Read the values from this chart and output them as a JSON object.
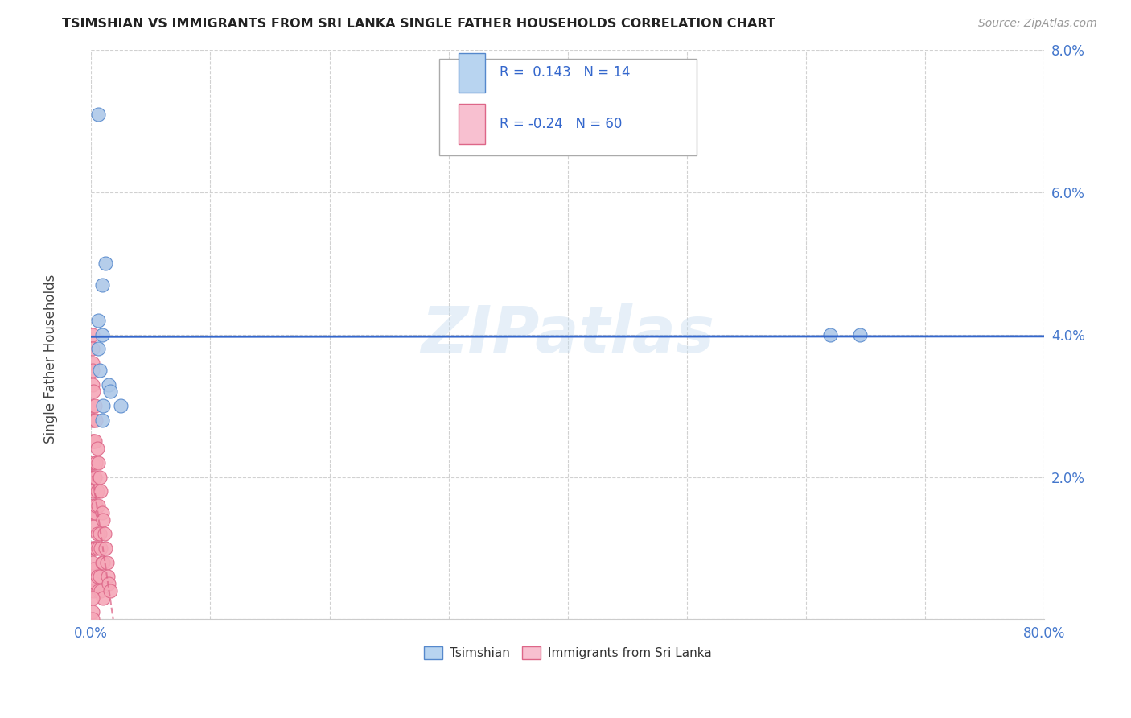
{
  "title": "TSIMSHIAN VS IMMIGRANTS FROM SRI LANKA SINGLE FATHER HOUSEHOLDS CORRELATION CHART",
  "source": "Source: ZipAtlas.com",
  "ylabel": "Single Father Households",
  "xlim": [
    0,
    0.8
  ],
  "ylim": [
    0,
    0.08
  ],
  "xticks": [
    0.0,
    0.1,
    0.2,
    0.3,
    0.4,
    0.5,
    0.6,
    0.7,
    0.8
  ],
  "xticklabels": [
    "0.0%",
    "",
    "",
    "",
    "",
    "",
    "",
    "",
    "80.0%"
  ],
  "yticks": [
    0.0,
    0.02,
    0.04,
    0.06,
    0.08
  ],
  "yticklabels": [
    "",
    "2.0%",
    "4.0%",
    "6.0%",
    "8.0%"
  ],
  "tsimshian_color": "#adc8e8",
  "srilanka_color": "#f5a8b8",
  "tsimshian_edge": "#5588cc",
  "srilanka_edge": "#dd6688",
  "legend_tsimshian_fill": "#b8d4f0",
  "legend_srilanka_fill": "#f8c0d0",
  "blue_line_color": "#3366cc",
  "pink_line_color": "#dd6688",
  "R_tsimshian": 0.143,
  "N_tsimshian": 14,
  "R_srilanka": -0.24,
  "N_srilanka": 60,
  "tsimshian_x": [
    0.006,
    0.012,
    0.009,
    0.009,
    0.007,
    0.015,
    0.016,
    0.01,
    0.009,
    0.62,
    0.645,
    0.006,
    0.006,
    0.025
  ],
  "tsimshian_y": [
    0.071,
    0.05,
    0.047,
    0.04,
    0.035,
    0.033,
    0.032,
    0.03,
    0.028,
    0.04,
    0.04,
    0.038,
    0.042,
    0.03
  ],
  "srilanka_x": [
    0.001,
    0.001,
    0.001,
    0.001,
    0.001,
    0.001,
    0.001,
    0.001,
    0.001,
    0.001,
    0.002,
    0.002,
    0.002,
    0.002,
    0.002,
    0.002,
    0.002,
    0.002,
    0.002,
    0.003,
    0.003,
    0.003,
    0.003,
    0.003,
    0.004,
    0.004,
    0.004,
    0.004,
    0.004,
    0.005,
    0.005,
    0.005,
    0.005,
    0.006,
    0.006,
    0.006,
    0.006,
    0.007,
    0.007,
    0.007,
    0.008,
    0.008,
    0.008,
    0.009,
    0.009,
    0.01,
    0.01,
    0.01,
    0.011,
    0.012,
    0.013,
    0.014,
    0.015,
    0.016,
    0.001,
    0.001,
    0.001,
    0.001,
    0.001,
    0.001
  ],
  "srilanka_y": [
    0.036,
    0.033,
    0.03,
    0.028,
    0.025,
    0.022,
    0.018,
    0.015,
    0.01,
    0.008,
    0.032,
    0.028,
    0.025,
    0.02,
    0.016,
    0.013,
    0.01,
    0.007,
    0.004,
    0.03,
    0.025,
    0.02,
    0.015,
    0.01,
    0.028,
    0.022,
    0.016,
    0.01,
    0.005,
    0.024,
    0.018,
    0.012,
    0.006,
    0.022,
    0.016,
    0.01,
    0.004,
    0.02,
    0.012,
    0.006,
    0.018,
    0.01,
    0.004,
    0.015,
    0.008,
    0.014,
    0.008,
    0.003,
    0.012,
    0.01,
    0.008,
    0.006,
    0.005,
    0.004,
    0.04,
    0.038,
    0.035,
    0.003,
    0.001,
    0.0
  ],
  "watermark": "ZIPatlas",
  "background_color": "#ffffff",
  "grid_color": "#cccccc"
}
